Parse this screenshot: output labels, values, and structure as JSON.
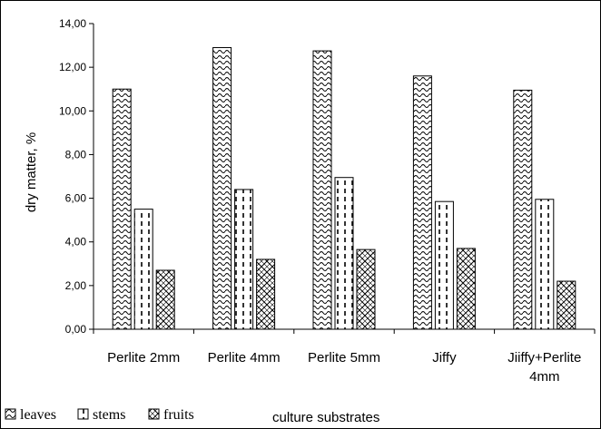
{
  "chart_data": {
    "type": "bar",
    "title": "",
    "xlabel": "culture substrates",
    "ylabel": "dry matter, %",
    "ylim": [
      0,
      14
    ],
    "ytick_step": 2,
    "ytick_labels": [
      "0,00",
      "2,00",
      "4,00",
      "6,00",
      "8,00",
      "10,00",
      "12,00",
      "14,00"
    ],
    "categories": [
      [
        "Perlite 2mm"
      ],
      [
        "Perlite 4mm"
      ],
      [
        "Perlite 5mm"
      ],
      [
        "Jiffy"
      ],
      [
        "Jiiffy+Perlite",
        "4mm"
      ]
    ],
    "series": [
      {
        "name": "leaves",
        "values": [
          11.0,
          12.9,
          12.75,
          11.6,
          10.95
        ],
        "pattern": "wave"
      },
      {
        "name": "stems",
        "values": [
          5.5,
          6.4,
          6.95,
          5.85,
          5.95
        ],
        "pattern": "dash"
      },
      {
        "name": "fruits",
        "values": [
          2.7,
          3.2,
          3.65,
          3.7,
          2.2
        ],
        "pattern": "diamond"
      }
    ],
    "grid": false,
    "legend_position": "bottom-left"
  }
}
